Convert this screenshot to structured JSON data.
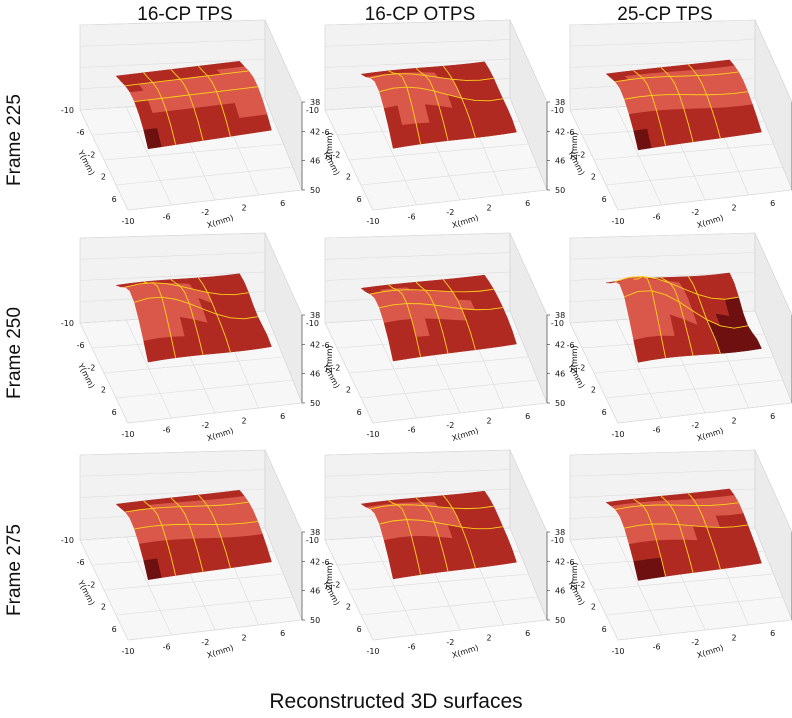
{
  "chart_data": {
    "type": "surface3d",
    "title": "Reconstructed 3D surfaces",
    "columns": [
      "16-CP TPS",
      "16-CP OTPS",
      "25-CP TPS"
    ],
    "rows": [
      "Frame 225",
      "Frame 250",
      "Frame 275"
    ],
    "xlabel": "X(mm)",
    "ylabel": "Y(mm)",
    "zlabel": "Z(mm)",
    "x_ticks": [
      "-10",
      "-6",
      "-2",
      "2",
      "6"
    ],
    "y_ticks": [
      "-10",
      "-6",
      "-2",
      "2",
      "6"
    ],
    "z_ticks": [
      "38",
      "42",
      "46",
      "50"
    ],
    "xlim": [
      -10,
      8
    ],
    "ylim": [
      -10,
      8
    ],
    "zlim": [
      38,
      50
    ],
    "zaxis_inverted": true,
    "grid": true,
    "surface_colors": {
      "dark": "#6e1010",
      "mid": "#b02a22",
      "light": "#d9584a",
      "grid_line": "#ffd21a"
    }
  }
}
